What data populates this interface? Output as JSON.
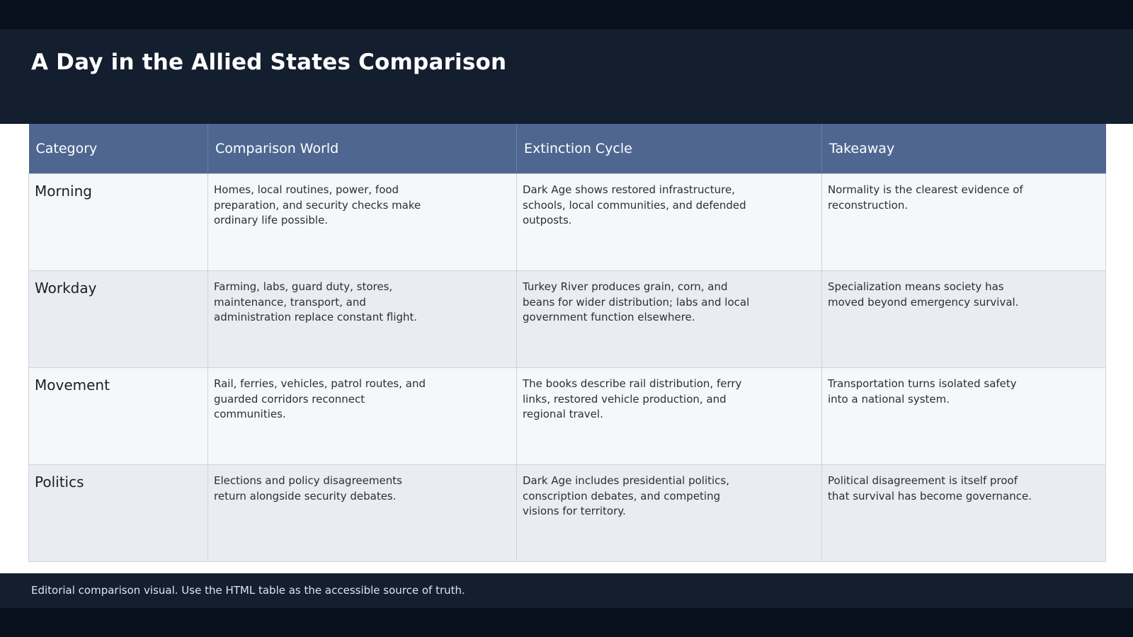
{
  "header": {
    "title": "A Day in the Allied States Comparison"
  },
  "table": {
    "columns": [
      "Category",
      "Comparison World",
      "Extinction Cycle",
      "Takeaway"
    ],
    "rows": [
      {
        "category": "Morning",
        "comparison_world": "Homes, local routines, power, food preparation, and security checks make ordinary life possible.",
        "extinction_cycle": "Dark Age shows restored infrastructure, schools, local communities, and defended outposts.",
        "takeaway": "Normality is the clearest evidence of reconstruction."
      },
      {
        "category": "Workday",
        "comparison_world": "Farming, labs, guard duty, stores, maintenance, transport, and administration replace constant flight.",
        "extinction_cycle": "Turkey River produces grain, corn, and beans for wider distribution; labs and local government function elsewhere.",
        "takeaway": "Specialization means society has moved beyond emergency survival."
      },
      {
        "category": "Movement",
        "comparison_world": "Rail, ferries, vehicles, patrol routes, and guarded corridors reconnect communities.",
        "extinction_cycle": "The books describe rail distribution, ferry links, restored vehicle production, and regional travel.",
        "takeaway": "Transportation turns isolated safety into a national system."
      },
      {
        "category": "Politics",
        "comparison_world": "Elections and policy disagreements return alongside security debates.",
        "extinction_cycle": "Dark Age includes presidential politics, conscription debates, and competing visions for territory.",
        "takeaway": "Political disagreement is itself proof that survival has become governance."
      }
    ]
  },
  "footer": {
    "note": "Editorial comparison visual. Use the HTML table as the accessible source of truth."
  },
  "colors": {
    "header_bg": "#131e2e",
    "table_header_bg": "#4f6790",
    "row_odd_bg": "#f5f7fa",
    "row_even_bg": "#e9ecf3"
  }
}
